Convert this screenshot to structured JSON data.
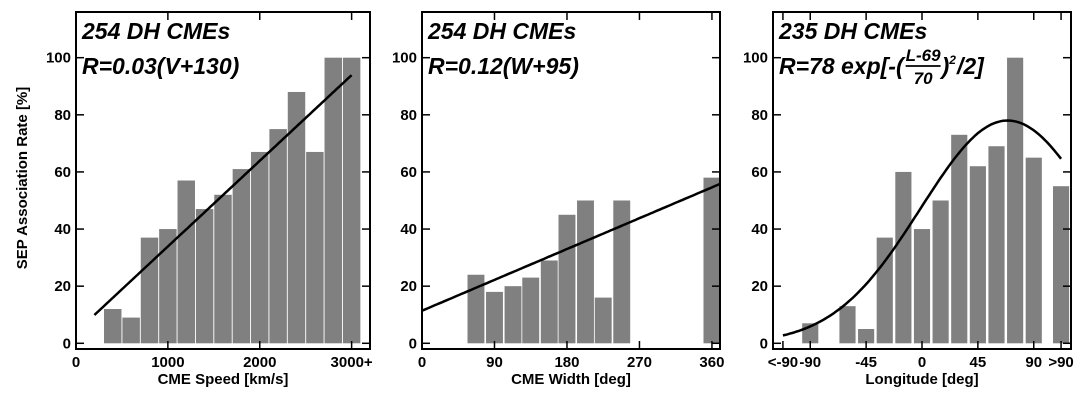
{
  "ylabel": "SEP Association Rate [%]",
  "chart_data": [
    {
      "type": "bar",
      "xlabel": "CME Speed [km/s]",
      "xlim": [
        0,
        3200
      ],
      "ylim": [
        -2,
        116
      ],
      "yticks": [
        0,
        20,
        40,
        60,
        80,
        100
      ],
      "xticks": [
        {
          "value": 0,
          "label": "0"
        },
        {
          "value": 1000,
          "label": "1000"
        },
        {
          "value": 2000,
          "label": "2000"
        },
        {
          "value": 3000,
          "label": "3000+"
        }
      ],
      "bar_width": 190,
      "bars": [
        {
          "x": 400,
          "y": 12
        },
        {
          "x": 600,
          "y": 9
        },
        {
          "x": 800,
          "y": 37
        },
        {
          "x": 1000,
          "y": 40
        },
        {
          "x": 1200,
          "y": 57
        },
        {
          "x": 1400,
          "y": 47
        },
        {
          "x": 1600,
          "y": 52
        },
        {
          "x": 1800,
          "y": 61
        },
        {
          "x": 2000,
          "y": 67
        },
        {
          "x": 2200,
          "y": 75
        },
        {
          "x": 2400,
          "y": 88
        },
        {
          "x": 2600,
          "y": 67
        },
        {
          "x": 2800,
          "y": 100
        },
        {
          "x": 3000,
          "y": 100
        }
      ],
      "fit": {
        "form": "linear",
        "a": 0.03,
        "b": 130,
        "x_range": [
          200,
          3000
        ]
      },
      "annotation_line1": "254 DH CMEs",
      "annotation_line2": "R=0.03(V+130)",
      "bar_color": "#808080"
    },
    {
      "type": "bar",
      "xlabel": "CME Width [deg]",
      "xlim": [
        0,
        370
      ],
      "ylim": [
        -2,
        116
      ],
      "yticks": [
        0,
        20,
        40,
        60,
        80,
        100
      ],
      "xticks": [
        {
          "value": 0,
          "label": "0"
        },
        {
          "value": 90,
          "label": "90"
        },
        {
          "value": 180,
          "label": "180"
        },
        {
          "value": 270,
          "label": "270"
        },
        {
          "value": 360,
          "label": "360"
        }
      ],
      "bar_width": 21,
      "bars": [
        {
          "x": 67,
          "y": 24
        },
        {
          "x": 90,
          "y": 18
        },
        {
          "x": 113,
          "y": 20
        },
        {
          "x": 135,
          "y": 23
        },
        {
          "x": 158,
          "y": 29
        },
        {
          "x": 180,
          "y": 45
        },
        {
          "x": 203,
          "y": 50
        },
        {
          "x": 225,
          "y": 16
        },
        {
          "x": 248,
          "y": 50
        },
        {
          "x": 360,
          "y": 58
        }
      ],
      "fit": {
        "form": "linear",
        "a": 0.12,
        "b": 95,
        "x_range": [
          0,
          370
        ]
      },
      "annotation_line1": "254 DH CMEs",
      "annotation_line2": "R=0.12(W+95)",
      "bar_color": "#808080"
    },
    {
      "type": "bar",
      "xlabel": "Longitude [deg]",
      "xlim": [
        -120,
        120
      ],
      "ylim": [
        -2,
        116
      ],
      "yticks": [
        0,
        20,
        40,
        60,
        80,
        100
      ],
      "xticks": [
        {
          "value": -112,
          "label": "<-90"
        },
        {
          "value": -90,
          "label": "-90"
        },
        {
          "value": -45,
          "label": "-45"
        },
        {
          "value": 0,
          "label": "0"
        },
        {
          "value": 45,
          "label": "45"
        },
        {
          "value": 90,
          "label": "90"
        },
        {
          "value": 112,
          "label": ">90"
        }
      ],
      "bar_width": 13,
      "bars": [
        {
          "x": -90,
          "y": 7
        },
        {
          "x": -60,
          "y": 13
        },
        {
          "x": -45,
          "y": 5
        },
        {
          "x": -30,
          "y": 37
        },
        {
          "x": -15,
          "y": 60
        },
        {
          "x": 0,
          "y": 40
        },
        {
          "x": 15,
          "y": 50
        },
        {
          "x": 30,
          "y": 73
        },
        {
          "x": 45,
          "y": 62
        },
        {
          "x": 60,
          "y": 69
        },
        {
          "x": 75,
          "y": 100
        },
        {
          "x": 90,
          "y": 65
        },
        {
          "x": 112,
          "y": 55
        }
      ],
      "fit": {
        "form": "gaussian",
        "amplitude": 78,
        "center": 69,
        "sigma": 70,
        "x_range": [
          -112,
          112
        ]
      },
      "annotation_line1": "235 DH CMEs",
      "annotation_prefix": "R=78 exp[-(",
      "annotation_numerator": "L-69",
      "annotation_denominator": "70",
      "annotation_exponent": "2",
      "annotation_suffix": "/2]",
      "bar_color": "#808080"
    }
  ]
}
